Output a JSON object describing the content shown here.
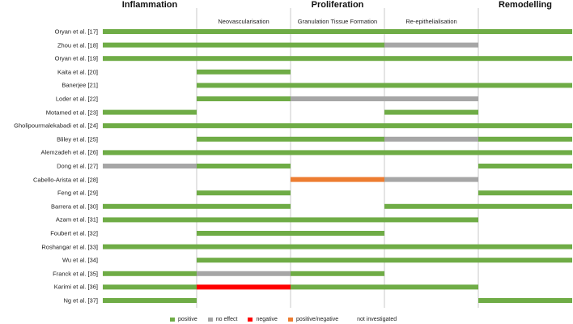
{
  "chart_data": {
    "type": "bar",
    "phases": [
      "Inflammation",
      "Proliferation",
      "Remodelling"
    ],
    "proliferation_subphases": [
      "Neovascularisation",
      "Granulation Tissue Formation",
      "Re-epithelialisation"
    ],
    "columns": [
      "Inflammation",
      "Neovascularisation",
      "Granulation Tissue Formation",
      "Re-epithelialisation",
      "Remodelling"
    ],
    "colors": {
      "positive": "#6FAC46",
      "no effect": "#A6A6A6",
      "negative": "#FF0000",
      "positive/negative": "#ED7D31",
      "not investigated": "#FFFFFF",
      "grid": "#C8C8C8"
    },
    "legend": [
      {
        "label": "positive",
        "key": "positive"
      },
      {
        "label": "no effect",
        "key": "no effect"
      },
      {
        "label": "negative",
        "key": "negative"
      },
      {
        "label": "positive/negative",
        "key": "positive/negative"
      },
      {
        "label": "not investigated",
        "key": "not investigated"
      }
    ],
    "rows": [
      {
        "label": "Oryan et al. [17]",
        "cells": [
          "positive",
          "positive",
          "positive",
          "positive",
          "positive"
        ]
      },
      {
        "label": "Zhou et al. [18]",
        "cells": [
          "positive",
          "positive",
          "positive",
          "no effect",
          null
        ]
      },
      {
        "label": "Oryan et al. [19]",
        "cells": [
          "positive",
          "positive",
          "positive",
          "positive",
          "positive"
        ]
      },
      {
        "label": "Kaita et al. [20]",
        "cells": [
          null,
          "positive",
          null,
          null,
          null
        ]
      },
      {
        "label": "Banerjee [21]",
        "cells": [
          null,
          "positive",
          "positive",
          "positive",
          "positive"
        ]
      },
      {
        "label": "Loder et al. [22]",
        "cells": [
          null,
          "positive",
          "no effect",
          "no effect",
          null
        ]
      },
      {
        "label": "Motamed et al. [23]",
        "cells": [
          "positive",
          null,
          null,
          "positive",
          null
        ]
      },
      {
        "label": "Gholipourmalekabadi et al. [24]",
        "cells": [
          "positive",
          "positive",
          "positive",
          "positive",
          "positive"
        ]
      },
      {
        "label": "Bliley et al. [25]",
        "cells": [
          null,
          "positive",
          "positive",
          "no effect",
          "positive"
        ]
      },
      {
        "label": "Alemzadeh et al. [26]",
        "cells": [
          "positive",
          "positive",
          "positive",
          "positive",
          "positive"
        ]
      },
      {
        "label": "Dong et al. [27]",
        "cells": [
          "no effect",
          "positive",
          null,
          null,
          "positive"
        ]
      },
      {
        "label": "Cabello-Arista et al. [28]",
        "cells": [
          null,
          null,
          "positive/negative",
          "no effect",
          null
        ]
      },
      {
        "label": "Feng et al. [29]",
        "cells": [
          null,
          "positive",
          null,
          null,
          "positive"
        ]
      },
      {
        "label": "Barrera et al. [30]",
        "cells": [
          "positive",
          "positive",
          null,
          "positive",
          "positive"
        ]
      },
      {
        "label": "Azam et al. [31]",
        "cells": [
          "positive",
          "positive",
          "positive",
          "positive",
          null
        ]
      },
      {
        "label": "Foubert et al. [32]",
        "cells": [
          null,
          "positive",
          "positive",
          null,
          null
        ]
      },
      {
        "label": "Roshangar et al. [33]",
        "cells": [
          "positive",
          "positive",
          "positive",
          "positive",
          "positive"
        ]
      },
      {
        "label": "Wu et al. [34]",
        "cells": [
          null,
          "positive",
          "positive",
          "positive",
          "positive"
        ]
      },
      {
        "label": "Franck et al. [35]",
        "cells": [
          "positive",
          "no effect",
          "positive",
          null,
          null
        ]
      },
      {
        "label": "Karimi et al. [36]",
        "cells": [
          "positive",
          "negative",
          "positive",
          "positive",
          null
        ]
      },
      {
        "label": "Ng et al. [37]",
        "cells": [
          "positive",
          null,
          null,
          null,
          "positive"
        ]
      }
    ]
  }
}
